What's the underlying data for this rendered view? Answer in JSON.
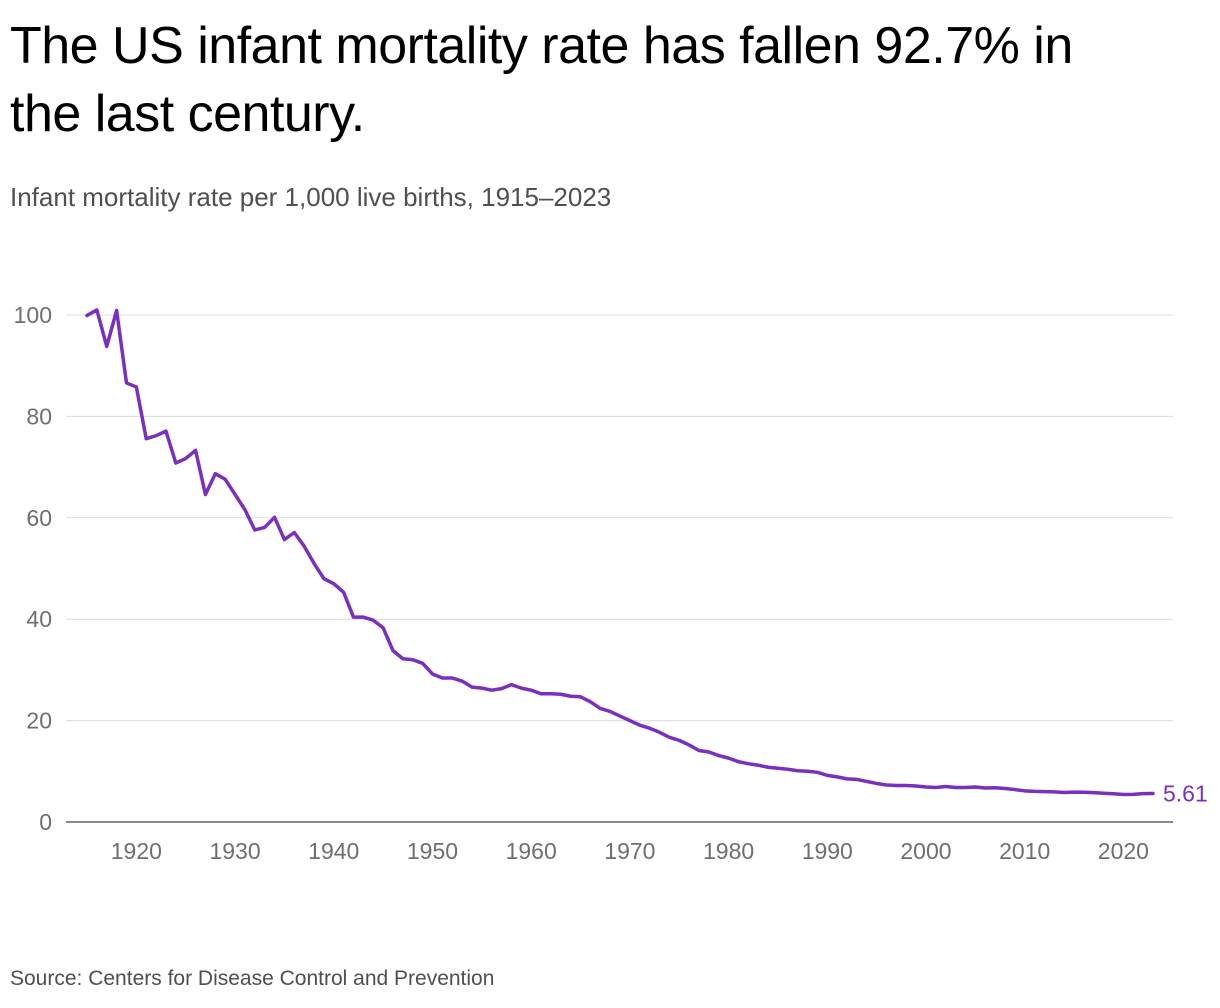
{
  "title": "The US infant mortality rate has fallen 92.7% in the last century.",
  "subtitle": "Infant mortality rate per 1,000 live births, 1915–2023",
  "source": "Source: Centers for Disease Control and Prevention",
  "colors": {
    "series": "#7b2fbe",
    "grid": "#dcdcdc",
    "axis": "#8a8a8a",
    "tick_text": "#6f6f6f"
  },
  "chart_data": {
    "type": "line",
    "title": "The US infant mortality rate has fallen 92.7% in the last century.",
    "subtitle": "Infant mortality rate per 1,000 live births, 1915–2023",
    "xlabel": "",
    "ylabel": "",
    "xlim": [
      1915,
      2023
    ],
    "ylim": [
      0,
      100
    ],
    "grid": true,
    "legend": "none",
    "y_ticks": [
      0,
      20,
      40,
      60,
      80,
      100
    ],
    "x_ticks": [
      1920,
      1930,
      1940,
      1950,
      1960,
      1970,
      1980,
      1990,
      2000,
      2010,
      2020
    ],
    "end_label": "5.61",
    "series": [
      {
        "name": "Infant mortality rate",
        "x": [
          1915,
          1916,
          1917,
          1918,
          1919,
          1920,
          1921,
          1922,
          1923,
          1924,
          1925,
          1926,
          1927,
          1928,
          1929,
          1930,
          1931,
          1932,
          1933,
          1934,
          1935,
          1936,
          1937,
          1938,
          1939,
          1940,
          1941,
          1942,
          1943,
          1944,
          1945,
          1946,
          1947,
          1948,
          1949,
          1950,
          1951,
          1952,
          1953,
          1954,
          1955,
          1956,
          1957,
          1958,
          1959,
          1960,
          1961,
          1962,
          1963,
          1964,
          1965,
          1966,
          1967,
          1968,
          1969,
          1970,
          1971,
          1972,
          1973,
          1974,
          1975,
          1976,
          1977,
          1978,
          1979,
          1980,
          1981,
          1982,
          1983,
          1984,
          1985,
          1986,
          1987,
          1988,
          1989,
          1990,
          1991,
          1992,
          1993,
          1994,
          1995,
          1996,
          1997,
          1998,
          1999,
          2000,
          2001,
          2002,
          2003,
          2004,
          2005,
          2006,
          2007,
          2008,
          2009,
          2010,
          2011,
          2012,
          2013,
          2014,
          2015,
          2016,
          2017,
          2018,
          2019,
          2020,
          2021,
          2022,
          2023
        ],
        "values": [
          99.9,
          101.0,
          93.8,
          100.9,
          86.6,
          85.8,
          75.6,
          76.2,
          77.1,
          70.8,
          71.7,
          73.3,
          64.6,
          68.7,
          67.6,
          64.6,
          61.6,
          57.6,
          58.1,
          60.1,
          55.7,
          57.1,
          54.4,
          51.0,
          48.0,
          47.0,
          45.3,
          40.4,
          40.4,
          39.8,
          38.3,
          33.8,
          32.2,
          32.0,
          31.3,
          29.2,
          28.4,
          28.4,
          27.8,
          26.6,
          26.4,
          26.0,
          26.3,
          27.1,
          26.4,
          26.0,
          25.3,
          25.3,
          25.2,
          24.8,
          24.7,
          23.7,
          22.4,
          21.8,
          20.9,
          20.0,
          19.1,
          18.5,
          17.7,
          16.7,
          16.1,
          15.2,
          14.1,
          13.8,
          13.1,
          12.6,
          11.9,
          11.5,
          11.2,
          10.8,
          10.6,
          10.4,
          10.1,
          10.0,
          9.8,
          9.2,
          8.9,
          8.5,
          8.4,
          8.0,
          7.6,
          7.3,
          7.2,
          7.2,
          7.1,
          6.9,
          6.8,
          7.0,
          6.8,
          6.8,
          6.9,
          6.7,
          6.75,
          6.6,
          6.4,
          6.15,
          6.05,
          6.0,
          5.95,
          5.82,
          5.9,
          5.87,
          5.8,
          5.67,
          5.58,
          5.42,
          5.44,
          5.6,
          5.61
        ]
      }
    ]
  }
}
